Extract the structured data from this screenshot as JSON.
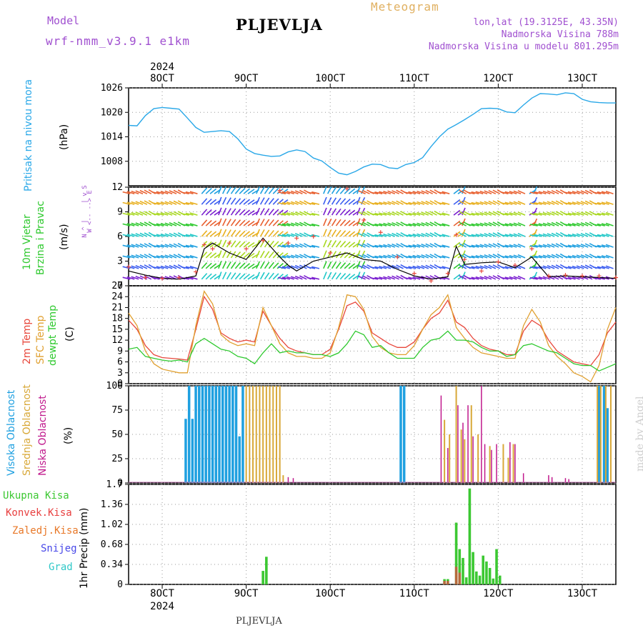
{
  "header": {
    "model_label": "Model",
    "model_name": "wrf-nmm_v3.9.1 e1km",
    "title": "PLJEVLJA",
    "meteogram": "Meteogram",
    "coords": "lon,lat (19.3125E, 43.35N)",
    "elevation": "Nadmorska Visina 788m",
    "model_elevation": "Nadmorska Visina u modelu 801.295m"
  },
  "time_axis": {
    "year": "2024",
    "ticks": [
      "8OCT",
      "9OCT",
      "10OCT",
      "11OCT",
      "12OCT",
      "13OCT"
    ],
    "tick_days": [
      8,
      9,
      10,
      11,
      12,
      13
    ],
    "range_days": [
      7.6,
      13.4
    ]
  },
  "panel_labels": {
    "pressure": [
      "Pritisak na nivou mora"
    ],
    "pressure_unit": "(hPa)",
    "wind": [
      "10m Vjetar",
      "Brzina i Pravac"
    ],
    "wind_unit": "(m/s)",
    "wind_compass": [
      "N",
      "^",
      "|",
      "W <-- --> E",
      "|",
      "v",
      "S"
    ],
    "temp": [
      "2m Temp",
      "SFC Temp",
      "dewpt Temp"
    ],
    "temp_unit": "(C)",
    "cloud": [
      "Visoka Oblacnost",
      "Srednja Oblacnost",
      "Niska Oblacnost"
    ],
    "cloud_unit": "(%)",
    "precip_unit": "1hr Precip (mm)",
    "precip_legend": [
      "Ukupna Kisa",
      "Konvek.Kisa",
      "Zaledj.Kisa",
      "Snijeg",
      "Grad"
    ]
  },
  "colors": {
    "pressure": "#2aa8e8",
    "temp2m": "#e8483c",
    "sfc": "#e0a030",
    "dewpt": "#2ec92e",
    "wind_speed": "#000000",
    "gust_marker": "#e8483c",
    "high_cloud": "#1fa0e0",
    "mid_cloud": "#d8a838",
    "low_cloud": "#c0188c",
    "total_rain": "#3cc832",
    "conv_rain": "#e84040",
    "frz_rain": "#e87828",
    "snow": "#4848e8",
    "graupel": "#30c8c8",
    "header_purple": "#a050d0",
    "header_gold": "#e0b060"
  },
  "footer": "PLJEVLJA",
  "credit": "made by Angel",
  "chart_data": [
    {
      "type": "line",
      "name": "pressure",
      "ylim": [
        1002,
        1026
      ],
      "yticks": [
        1008,
        1014,
        1020,
        1026
      ],
      "x": [
        7.6,
        7.7,
        7.8,
        7.9,
        8.0,
        8.1,
        8.2,
        8.3,
        8.4,
        8.5,
        8.6,
        8.7,
        8.8,
        8.9,
        9.0,
        9.1,
        9.2,
        9.3,
        9.4,
        9.5,
        9.6,
        9.7,
        9.8,
        9.9,
        10.0,
        10.1,
        10.2,
        10.3,
        10.4,
        10.5,
        10.6,
        10.7,
        10.8,
        10.9,
        11.0,
        11.1,
        11.2,
        11.3,
        11.4,
        11.5,
        11.6,
        11.7,
        11.8,
        11.9,
        12.0,
        12.1,
        12.2,
        12.3,
        12.4,
        12.5,
        12.6,
        12.7,
        12.8,
        12.9,
        13.0,
        13.1,
        13.2,
        13.3,
        13.4
      ],
      "series": [
        {
          "name": "pressure",
          "values": [
            1016.8,
            1016.7,
            1019.2,
            1020.9,
            1021.2,
            1021.0,
            1020.8,
            1018.6,
            1016.3,
            1015.1,
            1015.3,
            1015.5,
            1015.3,
            1013.5,
            1011.0,
            1009.9,
            1009.5,
            1009.2,
            1009.3,
            1010.3,
            1010.8,
            1010.4,
            1008.8,
            1008.1,
            1006.5,
            1005.1,
            1004.7,
            1005.5,
            1006.6,
            1007.3,
            1007.2,
            1006.4,
            1006.2,
            1007.2,
            1007.7,
            1008.9,
            1011.6,
            1014.0,
            1015.9,
            1017.0,
            1018.2,
            1019.5,
            1020.9,
            1021.0,
            1020.9,
            1020.1,
            1019.9,
            1021.8,
            1023.5,
            1024.6,
            1024.5,
            1024.3,
            1024.8,
            1024.6,
            1023.2,
            1022.6,
            1022.4,
            1022.3,
            1022.3
          ]
        }
      ]
    },
    {
      "type": "line",
      "name": "wind",
      "ylim": [
        0,
        12
      ],
      "yticks": [
        0,
        3,
        6,
        9,
        12
      ],
      "x": [
        7.6,
        7.8,
        8.0,
        8.2,
        8.4,
        8.5,
        8.6,
        8.8,
        9.0,
        9.2,
        9.4,
        9.5,
        9.6,
        9.8,
        10.0,
        10.2,
        10.4,
        10.6,
        10.8,
        11.0,
        11.2,
        11.4,
        11.5,
        11.6,
        11.8,
        12.0,
        12.2,
        12.4,
        12.6,
        12.8,
        13.0,
        13.2,
        13.4
      ],
      "series": [
        {
          "name": "speed",
          "values": [
            1.8,
            1.3,
            0.9,
            0.8,
            1.2,
            4.5,
            5.2,
            4.0,
            3.2,
            5.8,
            3.5,
            2.5,
            1.8,
            3.0,
            3.5,
            4.0,
            3.2,
            3.0,
            2.0,
            1.2,
            0.8,
            1.1,
            4.8,
            2.6,
            2.8,
            2.9,
            2.2,
            3.5,
            1.1,
            1.2,
            1.1,
            1.0,
            0.9
          ]
        },
        {
          "name": "gust",
          "values": [
            2.3,
            1.0,
            0.9,
            1.0,
            1.7,
            5.0,
            4.5,
            5.2,
            4.5,
            5.5,
            11.6,
            5.2,
            5.8,
            6.0,
            4.0,
            11.8,
            8.0,
            6.5,
            3.5,
            1.5,
            0.6,
            1.5,
            6.2,
            3.2,
            1.8,
            2.9,
            2.5,
            4.5,
            1.2,
            1.3,
            1.2,
            1.2,
            1.0
          ]
        }
      ]
    },
    {
      "type": "line",
      "name": "temperature",
      "ylim": [
        0,
        27
      ],
      "yticks": [
        0,
        3,
        6,
        9,
        12,
        15,
        18,
        21,
        24,
        27
      ],
      "x": [
        7.6,
        7.7,
        7.8,
        7.9,
        8.0,
        8.1,
        8.2,
        8.3,
        8.4,
        8.5,
        8.6,
        8.7,
        8.8,
        8.9,
        9.0,
        9.1,
        9.2,
        9.3,
        9.4,
        9.5,
        9.6,
        9.7,
        9.8,
        9.9,
        10.0,
        10.1,
        10.2,
        10.3,
        10.4,
        10.5,
        10.6,
        10.7,
        10.8,
        10.9,
        11.0,
        11.1,
        11.2,
        11.3,
        11.4,
        11.5,
        11.6,
        11.7,
        11.8,
        11.9,
        12.0,
        12.1,
        12.2,
        12.3,
        12.4,
        12.5,
        12.6,
        12.7,
        12.8,
        12.9,
        13.0,
        13.1,
        13.2,
        13.3,
        13.4
      ],
      "series": [
        {
          "name": "2m Temp",
          "values": [
            17.5,
            15.0,
            10.5,
            8.0,
            7.2,
            7.0,
            6.8,
            6.5,
            15.0,
            24.0,
            20.5,
            14.0,
            12.5,
            11.5,
            12.0,
            11.5,
            20.0,
            16.0,
            12.5,
            10.0,
            9.0,
            8.5,
            8.0,
            8.0,
            9.5,
            15.0,
            21.5,
            22.5,
            20.0,
            14.0,
            12.5,
            11.0,
            10.0,
            10.0,
            11.5,
            15.0,
            18.0,
            19.5,
            23.0,
            17.0,
            15.5,
            12.5,
            10.5,
            9.5,
            9.0,
            8.0,
            8.0,
            14.5,
            17.5,
            16.0,
            12.0,
            9.0,
            7.5,
            6.0,
            5.5,
            5.0,
            8.0,
            14.0,
            17.0
          ]
        },
        {
          "name": "SFC Temp",
          "values": [
            19.5,
            16.0,
            9.0,
            5.5,
            4.0,
            3.5,
            3.0,
            3.0,
            16.0,
            25.5,
            22.0,
            13.5,
            11.5,
            10.5,
            11.0,
            10.5,
            21.0,
            16.0,
            11.0,
            8.5,
            7.5,
            7.5,
            7.0,
            7.0,
            8.5,
            15.5,
            24.5,
            24.0,
            20.5,
            13.0,
            10.0,
            8.5,
            8.0,
            8.0,
            10.5,
            15.0,
            19.0,
            21.0,
            24.5,
            15.5,
            12.5,
            10.0,
            8.5,
            8.0,
            7.5,
            7.0,
            7.0,
            16.0,
            20.5,
            17.0,
            10.5,
            7.5,
            5.5,
            3.0,
            2.0,
            0.5,
            5.0,
            15.0,
            21.0
          ]
        },
        {
          "name": "dewpt Temp",
          "values": [
            9.5,
            10.0,
            7.5,
            7.0,
            6.5,
            6.2,
            6.5,
            6.0,
            11.0,
            12.5,
            11.0,
            9.5,
            9.0,
            7.5,
            7.0,
            5.5,
            8.5,
            11.0,
            8.5,
            9.0,
            8.5,
            8.5,
            8.0,
            8.0,
            7.5,
            8.5,
            11.0,
            14.5,
            13.5,
            10.0,
            10.5,
            8.5,
            7.0,
            7.0,
            7.0,
            10.0,
            12.0,
            12.5,
            14.5,
            12.0,
            12.0,
            11.5,
            10.0,
            9.0,
            9.0,
            7.5,
            8.0,
            10.5,
            11.0,
            10.0,
            9.0,
            8.5,
            7.0,
            5.5,
            5.0,
            5.0,
            3.5,
            4.5,
            5.5
          ]
        }
      ]
    },
    {
      "type": "bar",
      "name": "cloud_cover",
      "ylim": [
        0,
        100
      ],
      "yticks": [
        0,
        25,
        50,
        75,
        100
      ],
      "series": [
        {
          "name": "Visoka Oblacnost",
          "x": [
            8.28,
            8.32,
            8.36,
            8.4,
            8.44,
            8.48,
            8.52,
            8.56,
            8.6,
            8.64,
            8.68,
            8.72,
            8.76,
            8.8,
            8.84,
            8.88,
            8.92,
            8.96,
            10.84,
            10.88,
            13.2,
            13.26,
            13.3
          ],
          "values": [
            66,
            100,
            66,
            100,
            100,
            100,
            100,
            100,
            100,
            100,
            100,
            100,
            100,
            100,
            100,
            100,
            48,
            100,
            100,
            100,
            100,
            100,
            77
          ]
        },
        {
          "name": "Srednja Oblacnost",
          "x": [
            9.0,
            9.04,
            9.08,
            9.12,
            9.16,
            9.2,
            9.24,
            9.28,
            9.32,
            9.36,
            9.4,
            9.44,
            11.36,
            11.42,
            11.5,
            11.56,
            11.6,
            11.68,
            11.76,
            11.9,
            12.06,
            12.12,
            12.18,
            13.18,
            13.22,
            13.28,
            13.34
          ],
          "values": [
            100,
            100,
            100,
            100,
            100,
            100,
            100,
            100,
            100,
            100,
            100,
            8,
            65,
            50,
            100,
            55,
            45,
            80,
            50,
            38,
            40,
            26,
            40,
            100,
            100,
            100,
            100
          ]
        },
        {
          "name": "Niska Oblacnost",
          "x": [
            9.5,
            9.56,
            11.32,
            11.4,
            11.52,
            11.58,
            11.64,
            11.7,
            11.8,
            11.84,
            11.92,
            11.98,
            12.14,
            12.2,
            12.3,
            12.6,
            12.64,
            12.8,
            12.84
          ],
          "values": [
            6,
            5,
            90,
            36,
            80,
            62,
            80,
            48,
            100,
            40,
            34,
            40,
            42,
            40,
            10,
            8,
            6,
            5,
            4
          ]
        }
      ]
    },
    {
      "type": "bar",
      "name": "precipitation",
      "ylim": [
        0,
        1.7
      ],
      "yticks": [
        0,
        0.34,
        0.68,
        1.02,
        1.36,
        1.7
      ],
      "series": [
        {
          "name": "Ukupna Kisa",
          "x": [
            9.2,
            9.24,
            11.36,
            11.4,
            11.5,
            11.54,
            11.58,
            11.62,
            11.66,
            11.7,
            11.74,
            11.78,
            11.82,
            11.86,
            11.9,
            11.94,
            11.98,
            12.02
          ],
          "values": [
            0.23,
            0.47,
            0.09,
            0.09,
            1.05,
            0.6,
            0.45,
            0.12,
            1.63,
            0.55,
            0.22,
            0.15,
            0.49,
            0.39,
            0.28,
            0.1,
            0.6,
            0.15
          ]
        },
        {
          "name": "Konvek.Kisa",
          "x": [
            11.36,
            11.4,
            11.5,
            11.54
          ],
          "values": [
            0.06,
            0.06,
            0.3,
            0.2
          ]
        },
        {
          "name": "Zaledj.Kisa",
          "x": [],
          "values": []
        },
        {
          "name": "Snijeg",
          "x": [],
          "values": []
        },
        {
          "name": "Grad",
          "x": [],
          "values": []
        }
      ]
    }
  ]
}
